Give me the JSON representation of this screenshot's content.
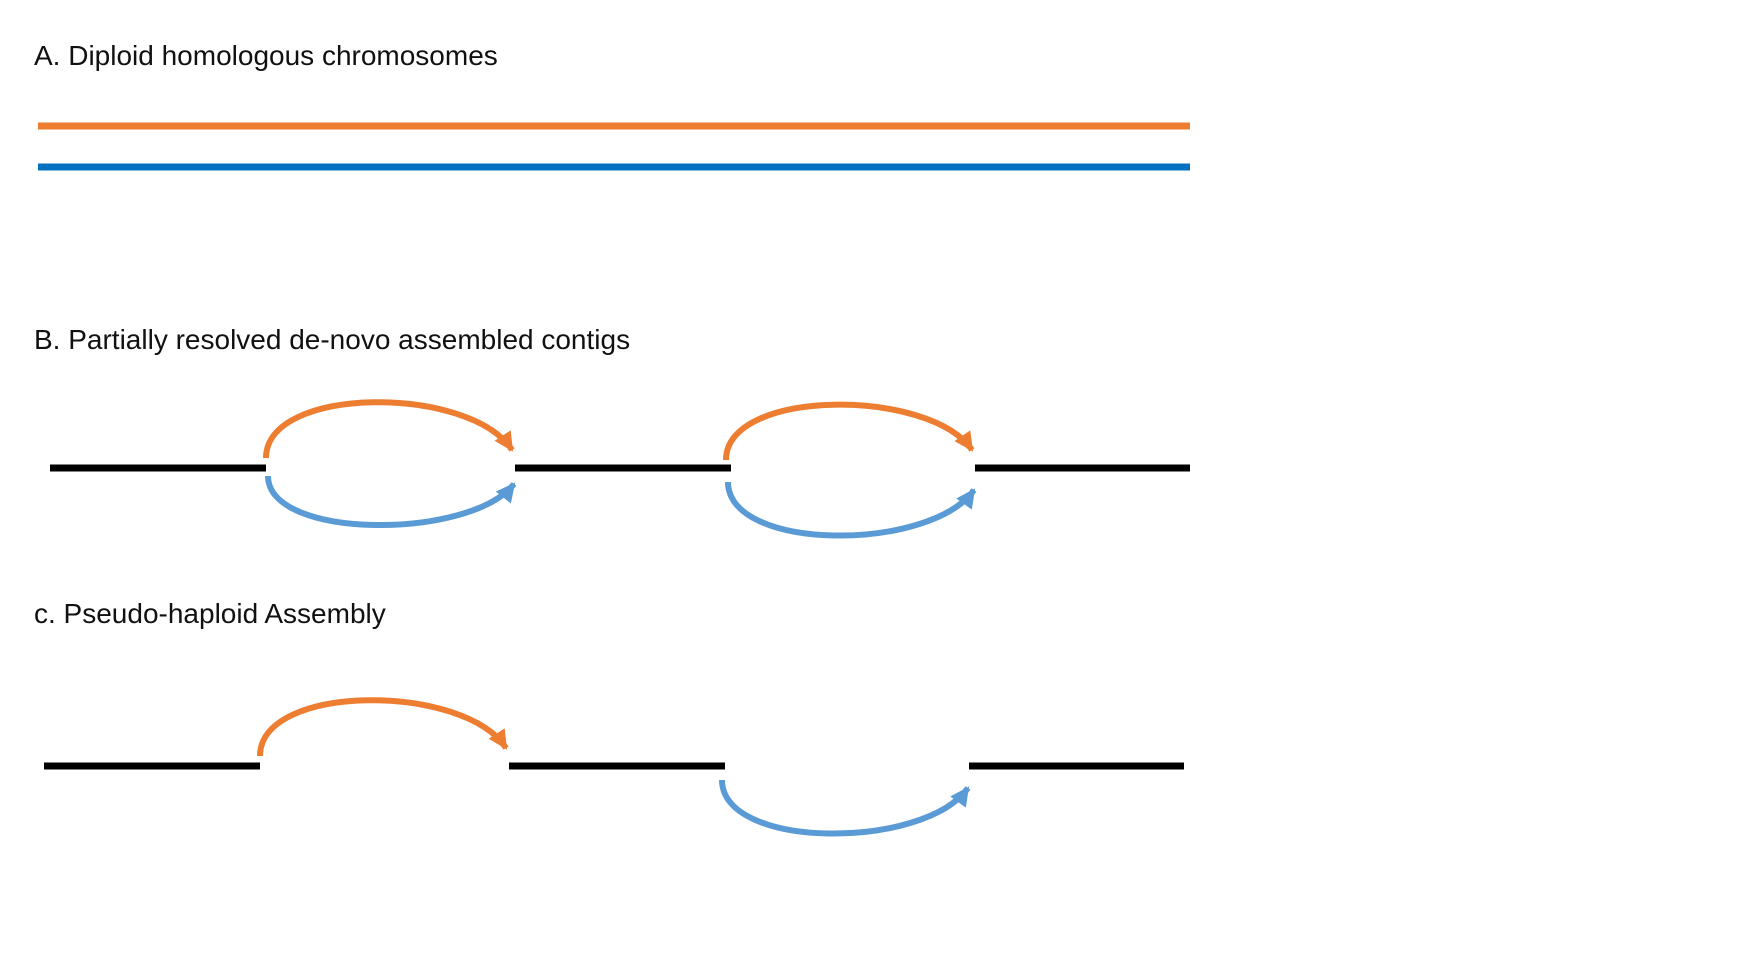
{
  "panels": {
    "a": {
      "title": "A. Diploid homologous chromosomes"
    },
    "b": {
      "title": "B. Partially resolved de-novo assembled contigs"
    },
    "c": {
      "title": "c. Pseudo-haploid Assembly"
    }
  },
  "colors": {
    "haplotype_1": "#ED7D31",
    "haplotype_2_line": "#0070C0",
    "haplotype_2_arrow": "#5B9BD5",
    "contig": "#000000",
    "background": "#FFFFFF"
  }
}
